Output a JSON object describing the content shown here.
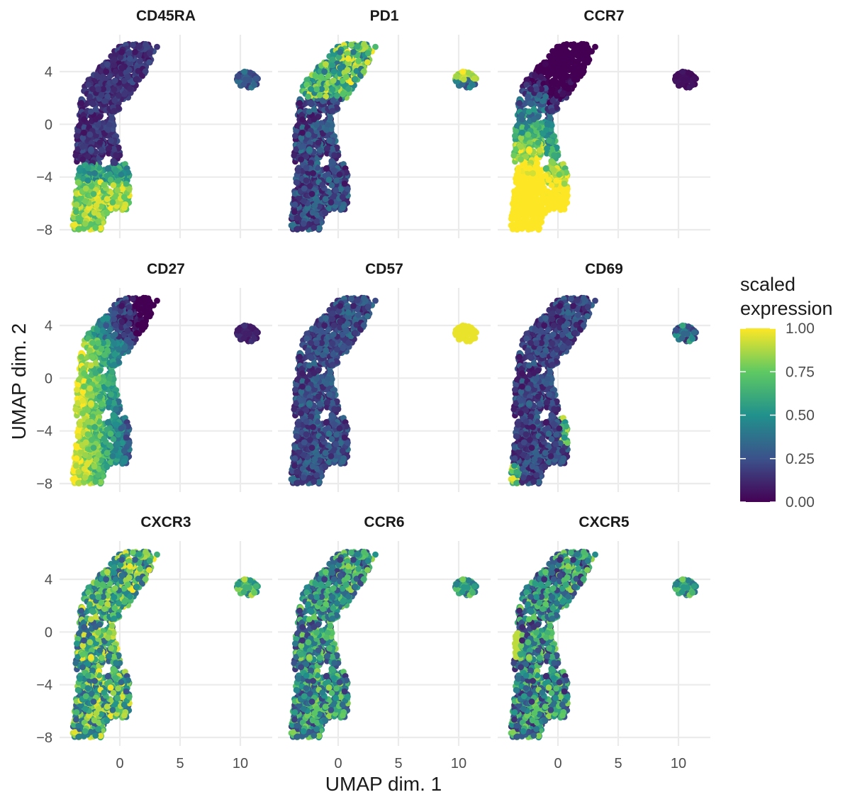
{
  "chart_data": {
    "type": "scatter",
    "layout": "faceted 3x3",
    "xlabel": "UMAP dim. 1",
    "ylabel": "UMAP dim. 2",
    "x_ticks": [
      0,
      5,
      10
    ],
    "y_ticks": [
      4,
      0,
      -4,
      -8
    ],
    "xlim": [
      -4.5,
      13.5
    ],
    "ylim": [
      -8.4,
      6.6
    ],
    "grid": true,
    "legend": {
      "title_lines": [
        "scaled",
        "expression"
      ],
      "position": "right",
      "ticks": [
        "1.00",
        "0.75",
        "0.50",
        "0.25",
        "0.00"
      ],
      "colormap": "viridis",
      "colors": [
        "#440154",
        "#3b528b",
        "#21918c",
        "#5ec962",
        "#fde725"
      ]
    },
    "panels": [
      {
        "title": "CD45RA",
        "note": "high in lower-left region (y < -4), low elsewhere"
      },
      {
        "title": "PD1",
        "note": "high in upper part of main cluster and top of small cluster"
      },
      {
        "title": "CCR7",
        "note": "high in lower-left and mid-left, low at top and small cluster"
      },
      {
        "title": "CD27",
        "note": "high on left side, low at top-right and small cluster"
      },
      {
        "title": "CD57",
        "note": "low in main cluster, high (1.00) in small cluster"
      },
      {
        "title": "CD69",
        "note": "mostly low, high along right edge"
      },
      {
        "title": "CXCR3",
        "note": "mixed, moderate-high throughout"
      },
      {
        "title": "CCR6",
        "note": "mixed, moderate throughout"
      },
      {
        "title": "CXCR5",
        "note": "mixed, moderate with some high spots"
      }
    ]
  }
}
